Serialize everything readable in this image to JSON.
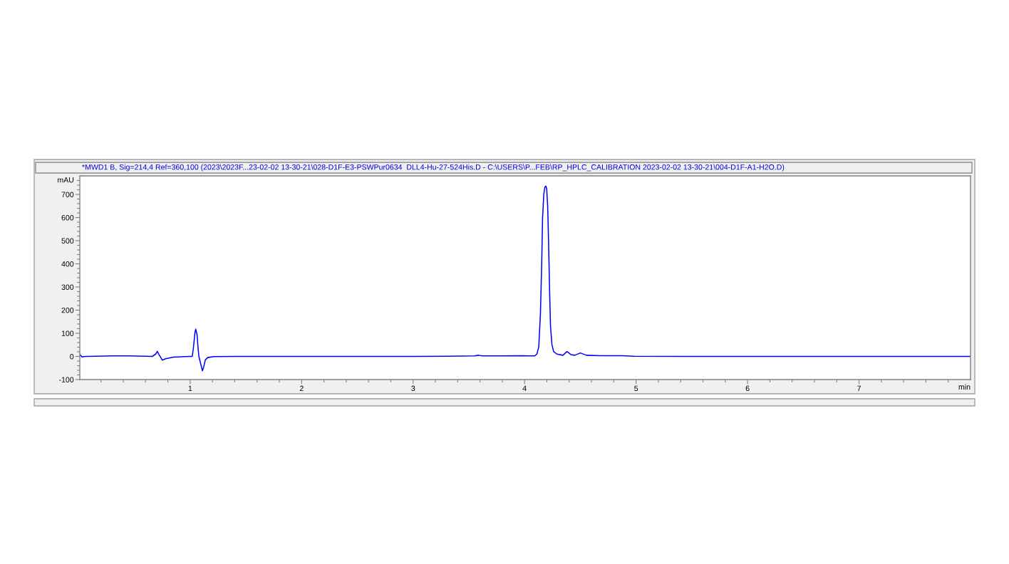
{
  "chart_data": {
    "type": "line",
    "title": "*MWD1 B, Sig=214,4 Ref=360,100 (2023\\2023F...23-02-02 13-30-21\\028-D1F-E3-PSWPur0634  DLL4-Hu-27-524His.D - C:\\USERS\\P...FEB\\RP_HPLC_CALIBRATION 2023-02-02 13-30-21\\004-D1F-A1-H2O.D)",
    "xlabel": "min",
    "ylabel": "mAU",
    "x": [
      0.01,
      0.03,
      0.06,
      0.15,
      0.3,
      0.45,
      0.6,
      0.66,
      0.69,
      0.705,
      0.72,
      0.75,
      0.78,
      0.85,
      0.95,
      1.0,
      1.019,
      1.03,
      1.043,
      1.05,
      1.062,
      1.07,
      1.078,
      1.094,
      1.11,
      1.121,
      1.136,
      1.157,
      1.21,
      1.4,
      1.7,
      2.0,
      2.5,
      3.0,
      3.3,
      3.55,
      3.588,
      3.62,
      3.8,
      3.97,
      4.03,
      4.09,
      4.11,
      4.127,
      4.142,
      4.153,
      4.161,
      4.172,
      4.181,
      4.19,
      4.198,
      4.207,
      4.215,
      4.224,
      4.232,
      4.245,
      4.26,
      4.29,
      4.344,
      4.38,
      4.415,
      4.45,
      4.5,
      4.555,
      4.68,
      4.87,
      4.98,
      5.5,
      6.0,
      6.5,
      7.0,
      7.5,
      8.0
    ],
    "series": [
      {
        "color": "#0000ff",
        "values": [
          8,
          -2,
          0,
          1,
          2,
          2,
          1,
          0,
          10,
          22,
          8,
          -16,
          -10,
          -3,
          -1,
          0,
          0,
          41,
          103,
          118,
          93,
          41,
          0,
          -31,
          -62,
          -46,
          -15,
          -5,
          -1,
          0,
          0,
          0,
          0,
          0,
          1,
          2,
          5,
          2,
          2,
          3,
          2,
          2,
          10,
          41,
          185,
          391,
          597,
          700,
          730,
          736,
          725,
          648,
          494,
          288,
          134,
          51,
          21,
          10,
          5,
          21,
          8,
          5,
          15,
          5,
          3,
          3,
          1,
          0,
          0,
          0,
          0,
          0,
          0
        ]
      }
    ],
    "xlim": [
      0.01,
      8.0
    ],
    "ylim": [
      -100,
      780
    ],
    "xticks": [
      {
        "value": 0.2,
        "label": null
      },
      {
        "value": 0.4,
        "label": null
      },
      {
        "value": 0.6,
        "label": null
      },
      {
        "value": 0.8,
        "label": null
      },
      1,
      {
        "value": 1.2,
        "label": null
      },
      {
        "value": 1.4,
        "label": null
      },
      {
        "value": 1.6,
        "label": null
      },
      {
        "value": 1.8,
        "label": null
      },
      2,
      {
        "value": 2.2,
        "label": null
      },
      {
        "value": 2.4,
        "label": null
      },
      {
        "value": 2.6,
        "label": null
      },
      {
        "value": 2.8,
        "label": null
      },
      3,
      {
        "value": 3.2,
        "label": null
      },
      {
        "value": 3.4,
        "label": null
      },
      {
        "value": 3.6,
        "label": null
      },
      {
        "value": 3.8,
        "label": null
      },
      4,
      {
        "value": 4.2,
        "label": null
      },
      {
        "value": 4.4,
        "label": null
      },
      {
        "value": 4.6,
        "label": null
      },
      {
        "value": 4.8,
        "label": null
      },
      5,
      {
        "value": 5.2,
        "label": null
      },
      {
        "value": 5.4,
        "label": null
      },
      {
        "value": 5.6,
        "label": null
      },
      {
        "value": 5.8,
        "label": null
      },
      6,
      {
        "value": 6.2,
        "label": null
      },
      {
        "value": 6.4,
        "label": null
      },
      {
        "value": 6.6,
        "label": null
      },
      {
        "value": 6.8,
        "label": null
      },
      7,
      {
        "value": 7.2,
        "label": null
      },
      {
        "value": 7.4,
        "label": null
      },
      {
        "value": 7.6,
        "label": null
      },
      {
        "value": 7.8,
        "label": null
      }
    ],
    "yticks": [
      -100,
      {
        "value": -80,
        "label": null
      },
      {
        "value": -60,
        "label": null
      },
      {
        "value": -40,
        "label": null
      },
      {
        "value": -20,
        "label": null
      },
      0,
      {
        "value": 20,
        "label": null
      },
      {
        "value": 40,
        "label": null
      },
      {
        "value": 60,
        "label": null
      },
      {
        "value": 80,
        "label": null
      },
      100,
      {
        "value": 120,
        "label": null
      },
      {
        "value": 140,
        "label": null
      },
      {
        "value": 160,
        "label": null
      },
      {
        "value": 180,
        "label": null
      },
      200,
      {
        "value": 220,
        "label": null
      },
      {
        "value": 240,
        "label": null
      },
      {
        "value": 260,
        "label": null
      },
      {
        "value": 280,
        "label": null
      },
      300,
      {
        "value": 320,
        "label": null
      },
      {
        "value": 340,
        "label": null
      },
      {
        "value": 360,
        "label": null
      },
      {
        "value": 380,
        "label": null
      },
      400,
      {
        "value": 420,
        "label": null
      },
      {
        "value": 440,
        "label": null
      },
      {
        "value": 460,
        "label": null
      },
      {
        "value": 480,
        "label": null
      },
      500,
      {
        "value": 520,
        "label": null
      },
      {
        "value": 540,
        "label": null
      },
      {
        "value": 560,
        "label": null
      },
      {
        "value": 580,
        "label": null
      },
      600,
      {
        "value": 620,
        "label": null
      },
      {
        "value": 640,
        "label": null
      },
      {
        "value": 660,
        "label": null
      },
      {
        "value": 680,
        "label": null
      },
      700,
      {
        "value": 720,
        "label": null
      },
      {
        "value": 740,
        "label": null
      },
      {
        "value": 760,
        "label": null
      }
    ]
  }
}
